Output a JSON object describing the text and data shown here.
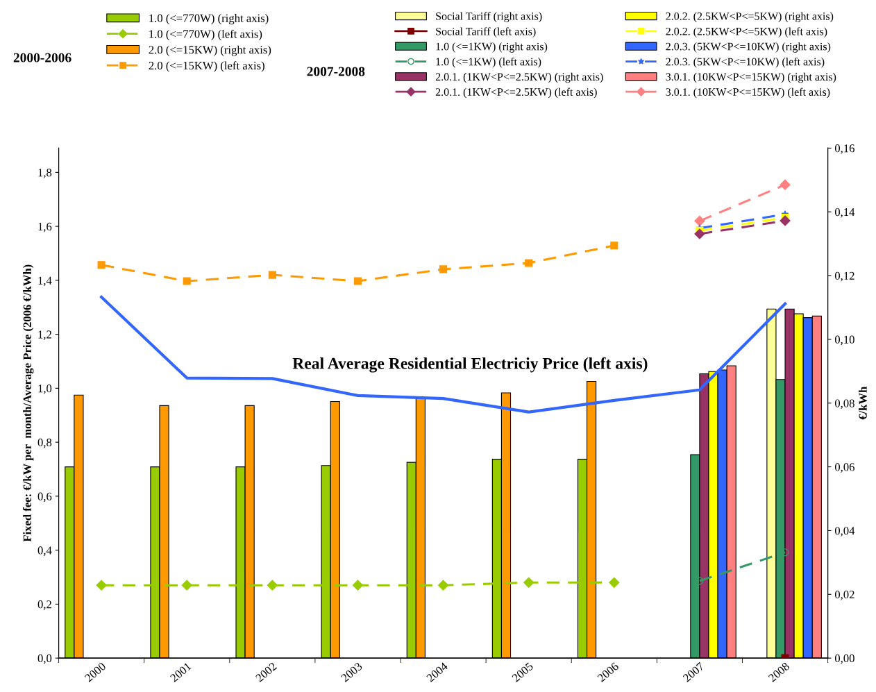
{
  "chart_data": {
    "type": "bar",
    "categories": [
      "2000",
      "2001",
      "2002",
      "2003",
      "2004",
      "2005",
      "2006",
      "2007",
      "2008"
    ],
    "ylabel": "Fixed fee: €/kW per  month/Average Price (2006 €/kWh)",
    "y2label": "€/kWh",
    "ylim": [
      0,
      1.89
    ],
    "yticks": [
      {
        "value": 0,
        "label": "0,0"
      },
      {
        "value": 0.2,
        "label": "0,2"
      },
      {
        "value": 0.4,
        "label": "0,4"
      },
      {
        "value": 0.6,
        "label": "0,6"
      },
      {
        "value": 0.8,
        "label": "0,8"
      },
      {
        "value": 1.0,
        "label": "1,0"
      },
      {
        "value": 1.2,
        "label": "1,2"
      },
      {
        "value": 1.4,
        "label": "1,4"
      },
      {
        "value": 1.6,
        "label": "1,6"
      },
      {
        "value": 1.8,
        "label": "1,8"
      }
    ],
    "y2lim": [
      0,
      0.16
    ],
    "y2ticks": [
      {
        "value": 0,
        "label": "0,00"
      },
      {
        "value": 0.02,
        "label": "0,02"
      },
      {
        "value": 0.04,
        "label": "0,04"
      },
      {
        "value": 0.06,
        "label": "0,06"
      },
      {
        "value": 0.08,
        "label": "0,08"
      },
      {
        "value": 0.1,
        "label": "0,10"
      },
      {
        "value": 0.12,
        "label": "0,12"
      },
      {
        "value": 0.14,
        "label": "0,14"
      },
      {
        "value": 0.16,
        "label": "0,16"
      }
    ],
    "grid": false,
    "legend": "top",
    "annotations": [
      "2000-2006",
      "2007-2008",
      "Real Average Residential Electriciy Price (left axis)"
    ],
    "series": [
      {
        "name": "1.0 (<=770W) (right axis)",
        "axis": "y2",
        "color": "#99cc00",
        "values": [
          0.06,
          0.06,
          0.06,
          0.0604,
          0.0614,
          0.0624,
          0.0624,
          null,
          null
        ]
      },
      {
        "name": "1.0 (<=770W) (left axis)",
        "type": "line",
        "line_style": "dashed",
        "marker": "diamond",
        "color": "#99cc00",
        "values": [
          0.27,
          0.27,
          0.27,
          0.27,
          0.27,
          0.28,
          0.28,
          null,
          null
        ]
      },
      {
        "name": "2.0 (<=15KW) (right axis)",
        "axis": "y2",
        "color": "#ff9900",
        "values": [
          0.0825,
          0.0792,
          0.0792,
          0.0805,
          0.0814,
          0.0832,
          0.0868,
          null,
          null
        ]
      },
      {
        "name": "2.0 (<=15KW) (left axis)",
        "type": "line",
        "line_style": "dashed",
        "marker": "square",
        "color": "#ff9900",
        "values": [
          1.457,
          1.397,
          1.42,
          1.397,
          1.441,
          1.464,
          1.529,
          null,
          null
        ]
      },
      {
        "name": "Social Tariff (right axis)",
        "axis": "y2",
        "color": "#ffff99",
        "values": [
          null,
          null,
          null,
          null,
          null,
          null,
          null,
          null,
          0.1095
        ]
      },
      {
        "name": "Social Tariff (left axis)",
        "type": "line",
        "line_style": "solid",
        "marker": "square",
        "color": "#800000",
        "values": [
          null,
          null,
          null,
          null,
          null,
          null,
          null,
          null,
          0.0
        ]
      },
      {
        "name": "1.0 (<=1KW) (right axis)",
        "axis": "y2",
        "color": "#339966",
        "values": [
          null,
          null,
          null,
          null,
          null,
          null,
          null,
          0.0638,
          0.0874
        ]
      },
      {
        "name": "1.0 (<=1KW) (left axis)",
        "type": "line",
        "line_style": "dashed",
        "marker": "circle",
        "color": "#339966",
        "values": [
          null,
          null,
          null,
          null,
          null,
          null,
          null,
          0.286,
          0.392
        ]
      },
      {
        "name": "2.0.1. (1KW<P<=2.5KW) (right axis)",
        "axis": "y2",
        "color": "#993366",
        "values": [
          null,
          null,
          null,
          null,
          null,
          null,
          null,
          0.0892,
          0.1095
        ]
      },
      {
        "name": "2.0.1. (1KW<P<=2.5KW) (left axis)",
        "type": "line",
        "line_style": "dashed",
        "marker": "diamond",
        "color": "#993366",
        "values": [
          null,
          null,
          null,
          null,
          null,
          null,
          null,
          1.572,
          1.621
        ]
      },
      {
        "name": "2.0.2. (2.5KW<P<=5KW) (right axis)",
        "axis": "y2",
        "color": "#ffff00",
        "values": [
          null,
          null,
          null,
          null,
          null,
          null,
          null,
          0.0899,
          0.108
        ]
      },
      {
        "name": "2.0.2. (2.5KW<P<=5KW) (left axis)",
        "type": "line",
        "line_style": "dashed",
        "marker": "square",
        "color": "#ffff00",
        "values": [
          null,
          null,
          null,
          null,
          null,
          null,
          null,
          1.584,
          1.632
        ]
      },
      {
        "name": "2.0.3. (5KW<P<=10KW) (right axis)",
        "axis": "y2",
        "color": "#3366ff",
        "values": [
          null,
          null,
          null,
          null,
          null,
          null,
          null,
          0.0904,
          0.1068
        ]
      },
      {
        "name": "2.0.3. (5KW<P<=10KW) (left axis)",
        "type": "line",
        "line_style": "dashed",
        "marker": "star",
        "color": "#3366ff",
        "values": [
          null,
          null,
          null,
          null,
          null,
          null,
          null,
          1.593,
          1.645
        ]
      },
      {
        "name": "3.0.1. (10KW<P<=15KW) (right axis)",
        "axis": "y2",
        "color": "#ff8080",
        "values": [
          null,
          null,
          null,
          null,
          null,
          null,
          null,
          0.0917,
          0.1073
        ]
      },
      {
        "name": "3.0.1. (10KW<P<=15KW) (left axis)",
        "type": "line",
        "line_style": "dashed",
        "marker": "diamond",
        "color": "#ff8080",
        "values": [
          null,
          null,
          null,
          null,
          null,
          null,
          null,
          1.62,
          1.754
        ]
      },
      {
        "type": "line",
        "line_style": "solid",
        "marker": "none",
        "color": "#3366ff",
        "values": [
          1.338,
          1.038,
          1.036,
          0.973,
          0.962,
          0.912,
          0.955,
          0.994,
          1.313
        ]
      }
    ]
  }
}
